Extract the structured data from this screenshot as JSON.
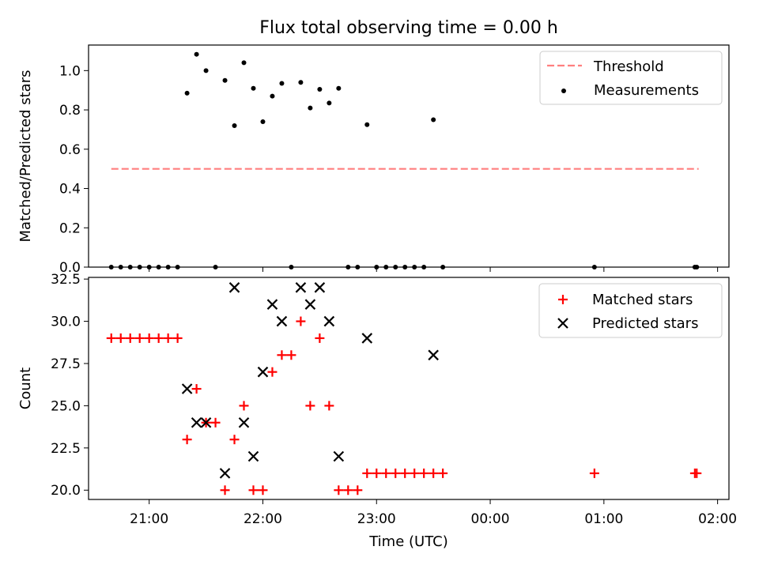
{
  "chart_data": [
    {
      "type": "scatter",
      "title": "Flux total observing time = 0.00 h",
      "xlabel": "",
      "ylabel": "Matched/Predicted stars",
      "ylim": [
        0,
        1.13
      ],
      "xlim": [
        "20:28",
        "02:06"
      ],
      "yticks": [
        "0.0",
        "0.2",
        "0.4",
        "0.6",
        "0.8",
        "1.0"
      ],
      "ytick_values": [
        0,
        0.2,
        0.4,
        0.6,
        0.8,
        1.0
      ],
      "legend_position": "top-right",
      "threshold": {
        "name": "Threshold",
        "value": 0.5,
        "x": [
          "20:40",
          "01:50"
        ],
        "color": "#ff7f7f"
      },
      "series": [
        {
          "name": "Measurements",
          "color": "#000000",
          "points": [
            [
              "20:40",
              0
            ],
            [
              "20:45",
              0
            ],
            [
              "20:50",
              0
            ],
            [
              "20:55",
              0
            ],
            [
              "21:00",
              0
            ],
            [
              "21:05",
              0
            ],
            [
              "21:10",
              0
            ],
            [
              "21:15",
              0
            ],
            [
              "21:20",
              0.885
            ],
            [
              "21:25",
              1.083
            ],
            [
              "21:30",
              1.0
            ],
            [
              "21:35",
              0
            ],
            [
              "21:40",
              0.95
            ],
            [
              "21:45",
              0.72
            ],
            [
              "21:50",
              1.04
            ],
            [
              "21:55",
              0.91
            ],
            [
              "22:00",
              0.74
            ],
            [
              "22:05",
              0.87
            ],
            [
              "22:10",
              0.935
            ],
            [
              "22:15",
              0
            ],
            [
              "22:20",
              0.94
            ],
            [
              "22:25",
              0.81
            ],
            [
              "22:30",
              0.905
            ],
            [
              "22:35",
              0.835
            ],
            [
              "22:40",
              0.91
            ],
            [
              "22:45",
              0
            ],
            [
              "22:50",
              0
            ],
            [
              "22:55",
              0.725
            ],
            [
              "23:00",
              0
            ],
            [
              "23:05",
              0
            ],
            [
              "23:10",
              0
            ],
            [
              "23:15",
              0
            ],
            [
              "23:20",
              0
            ],
            [
              "23:25",
              0
            ],
            [
              "23:30",
              0.75
            ],
            [
              "23:35",
              0
            ],
            [
              "00:55",
              0
            ],
            [
              "01:48",
              0
            ],
            [
              "01:49",
              0
            ]
          ]
        }
      ]
    },
    {
      "type": "scatter",
      "title": "",
      "xlabel": "Time (UTC)",
      "ylabel": "Count",
      "ylim": [
        19.45,
        32.6
      ],
      "xlim": [
        "20:28",
        "02:06"
      ],
      "yticks": [
        "20.0",
        "22.5",
        "25.0",
        "27.5",
        "30.0",
        "32.5"
      ],
      "ytick_values": [
        20,
        22.5,
        25,
        27.5,
        30,
        32.5
      ],
      "xticks": [
        "21:00",
        "22:00",
        "23:00",
        "00:00",
        "01:00",
        "02:00"
      ],
      "legend_position": "top-right",
      "series": [
        {
          "name": "Matched stars",
          "marker": "plus",
          "color": "#ff0000",
          "points": [
            [
              "20:40",
              29
            ],
            [
              "20:45",
              29
            ],
            [
              "20:50",
              29
            ],
            [
              "20:55",
              29
            ],
            [
              "21:00",
              29
            ],
            [
              "21:05",
              29
            ],
            [
              "21:10",
              29
            ],
            [
              "21:15",
              29
            ],
            [
              "21:20",
              23
            ],
            [
              "21:25",
              26
            ],
            [
              "21:30",
              24
            ],
            [
              "21:35",
              24
            ],
            [
              "21:40",
              20
            ],
            [
              "21:45",
              23
            ],
            [
              "21:50",
              25
            ],
            [
              "21:55",
              20
            ],
            [
              "22:00",
              20
            ],
            [
              "22:05",
              27
            ],
            [
              "22:10",
              28
            ],
            [
              "22:15",
              28
            ],
            [
              "22:20",
              30
            ],
            [
              "22:25",
              25
            ],
            [
              "22:30",
              29
            ],
            [
              "22:35",
              25
            ],
            [
              "22:40",
              20
            ],
            [
              "22:45",
              20
            ],
            [
              "22:50",
              20
            ],
            [
              "22:55",
              21
            ],
            [
              "23:00",
              21
            ],
            [
              "23:05",
              21
            ],
            [
              "23:10",
              21
            ],
            [
              "23:15",
              21
            ],
            [
              "23:20",
              21
            ],
            [
              "23:25",
              21
            ],
            [
              "23:30",
              21
            ],
            [
              "23:35",
              21
            ],
            [
              "00:55",
              21
            ],
            [
              "01:48",
              21
            ],
            [
              "01:49",
              21
            ]
          ]
        },
        {
          "name": "Predicted stars",
          "marker": "x",
          "color": "#000000",
          "points": [
            [
              "21:20",
              26
            ],
            [
              "21:25",
              24
            ],
            [
              "21:30",
              24
            ],
            [
              "21:40",
              21
            ],
            [
              "21:45",
              32
            ],
            [
              "21:50",
              24
            ],
            [
              "21:55",
              22
            ],
            [
              "22:00",
              27
            ],
            [
              "22:05",
              31
            ],
            [
              "22:10",
              30
            ],
            [
              "22:20",
              32
            ],
            [
              "22:25",
              31
            ],
            [
              "22:30",
              32
            ],
            [
              "22:35",
              30
            ],
            [
              "22:40",
              22
            ],
            [
              "22:55",
              29
            ],
            [
              "23:30",
              28
            ]
          ]
        }
      ]
    }
  ]
}
